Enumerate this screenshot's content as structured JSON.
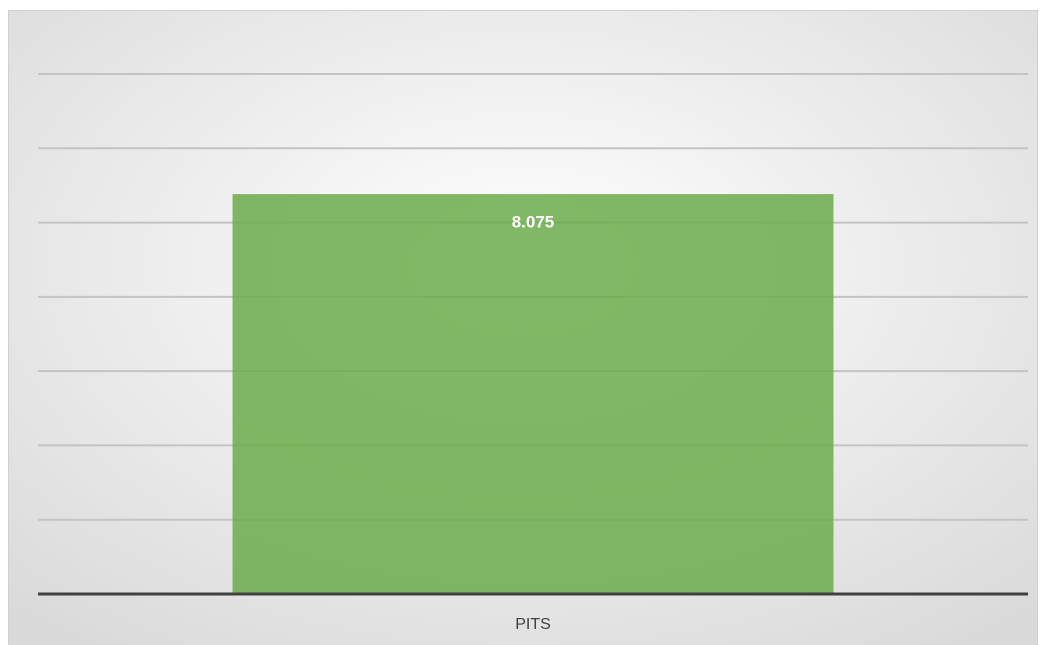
{
  "chart_data": {
    "type": "bar",
    "categories": [
      "PITS"
    ],
    "values": [
      8.075
    ],
    "color": "#6aab4a",
    "ylim": [
      0,
      10.5
    ],
    "yticks": [
      0,
      1.5,
      3,
      4.5,
      6,
      7.5,
      9,
      10.5
    ],
    "grid": true
  }
}
